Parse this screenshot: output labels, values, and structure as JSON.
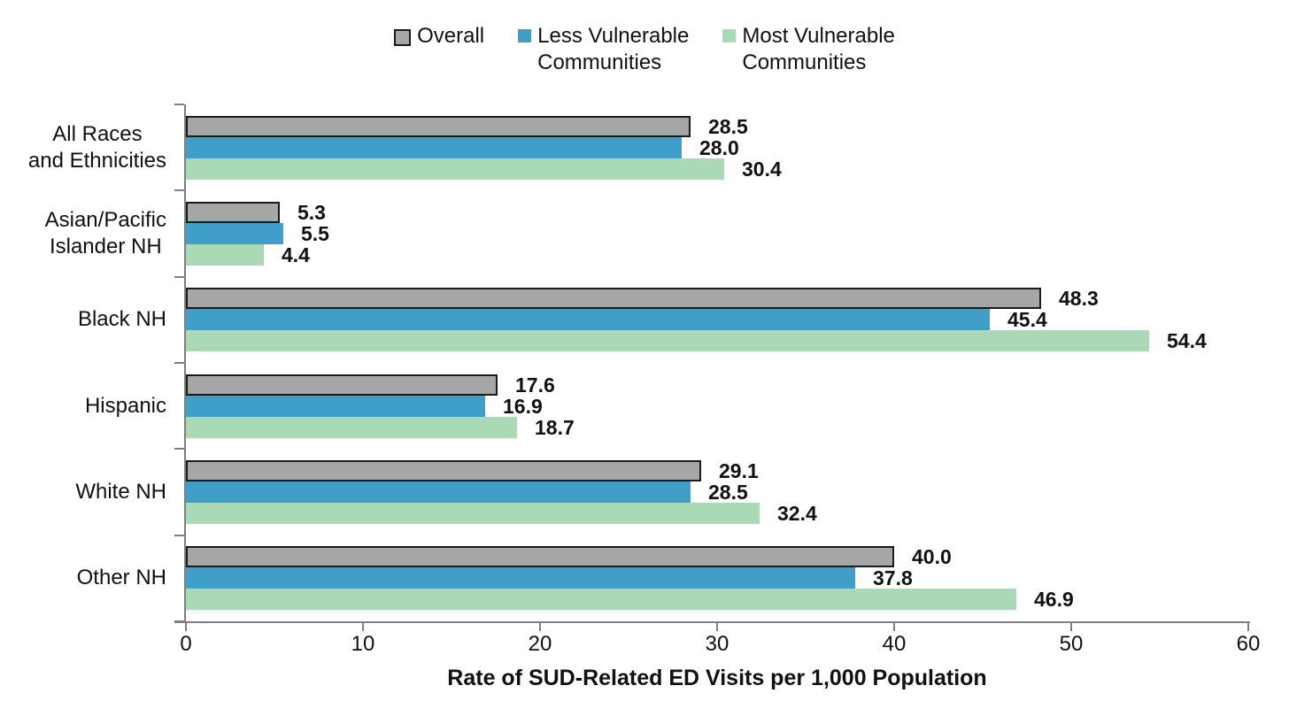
{
  "legend": {
    "items": [
      {
        "label": "Overall",
        "color": "#a6a6a6",
        "border": "#1a1a1a"
      },
      {
        "label": "Less Vulnerable\nCommunities",
        "color": "#3f9fc8",
        "border": ""
      },
      {
        "label": "Most Vulnerable\nCommunities",
        "color": "#a9dab5",
        "border": ""
      }
    ]
  },
  "chart_data": {
    "type": "bar",
    "orientation": "horizontal",
    "xlabel": "Rate of SUD-Related ED Visits per 1,000 Population",
    "xlim": [
      0,
      60
    ],
    "xticks": [
      0,
      10,
      20,
      30,
      40,
      50,
      60
    ],
    "grid": false,
    "legend_position": "top",
    "value_labels": true,
    "axis_color": "#7f7f7f",
    "categories": [
      "All Races\nand Ethnicities",
      "Asian/Pacific\nIslander NH",
      "Black NH",
      "Hispanic",
      "White NH",
      "Other NH"
    ],
    "series": [
      {
        "name": "Overall",
        "color": "#a6a6a6",
        "border": "#1a1a1a",
        "values": [
          28.5,
          5.3,
          48.3,
          17.6,
          29.1,
          40.0
        ],
        "labels": [
          "28.5",
          "5.3",
          "48.3",
          "17.6",
          "29.1",
          "40.0"
        ]
      },
      {
        "name": "Less Vulnerable Communities",
        "color": "#3f9fc8",
        "border": "",
        "values": [
          28.0,
          5.5,
          45.4,
          16.9,
          28.5,
          37.8
        ],
        "labels": [
          "28.0",
          "5.5",
          "45.4",
          "16.9",
          "28.5",
          "37.8"
        ]
      },
      {
        "name": "Most Vulnerable Communities",
        "color": "#a9dab5",
        "border": "",
        "values": [
          30.4,
          4.4,
          54.4,
          18.7,
          32.4,
          46.9
        ],
        "labels": [
          "30.4",
          "4.4",
          "54.4",
          "18.7",
          "32.4",
          "46.9"
        ]
      }
    ]
  }
}
